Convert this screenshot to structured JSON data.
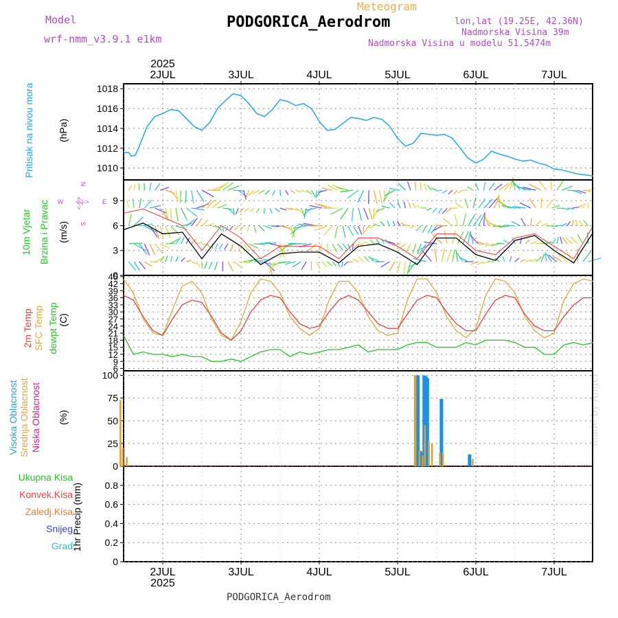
{
  "header": {
    "model_label": "Model",
    "model_name": "wrf-nmm_v3.9.1 e1km",
    "title": "Meteogram",
    "station": "PODGORICA_Aerodrom",
    "lonlat": "lon,lat (19.25E, 42.36N)",
    "elevation": "Nadmorska Visina 39m",
    "model_elevation": "Nadmorska Visina u modelu 51.5474m"
  },
  "footer_station": "PODGORICA_Aerodrom",
  "watermark": "made by Angel",
  "year_label": "2025",
  "days": [
    "2JUL",
    "3JUL",
    "4JUL",
    "5JUL",
    "6JUL",
    "7JUL"
  ],
  "compass": {
    "n": "N",
    "s": "S",
    "e": "E",
    "w": "W",
    "arrow_h": "<-|->",
    "arrow_v": "<-|->"
  },
  "colors": {
    "pressure": "#22a8e8",
    "temp2m": "#e84040",
    "sfc_temp": "#e0a840",
    "dewpoint": "#22c822",
    "high_cloud": "#1890e8",
    "mid_cloud": "#e0a030",
    "low_cloud": "#e0208a",
    "wind_speed": "#000000",
    "gust": "#ff3333",
    "total_precip": "#22c822",
    "conv_precip": "#e84040",
    "frozen_precip": "#f08030",
    "snow": "#4040d8",
    "hail": "#22c8c8",
    "compass": "#b04cc8"
  },
  "panel_labels": {
    "pressure": {
      "name": "Pritisak na nivou mora",
      "unit": "(hPa)"
    },
    "wind": {
      "name1": "10m Vjetar",
      "name2": "Brzina i Pravac",
      "unit": "(m/s)"
    },
    "temp": {
      "t2m": "2m Temp",
      "sfc": "SFC Temp",
      "dew": "dewpt Temp",
      "unit": "(C)"
    },
    "cloud": {
      "high": "Visoka Oblacnost",
      "mid": "Srednja Oblacnost",
      "low": "Niska Oblacnost",
      "unit": "(%)"
    },
    "precip": {
      "total": "Ukupna Kisa",
      "conv": "Konvek.Kisa",
      "frozen": "Zaledj.Kisa",
      "snow": "Snijeg",
      "hail": "Grad",
      "unit": "1hr Precip (mm)"
    }
  },
  "chart_data": [
    {
      "type": "line",
      "title": "",
      "ylabel": "Pritisak na nivou mora (hPa)",
      "ylim": [
        1008.8,
        1018.5
      ],
      "yticks": [
        1010,
        1012,
        1014,
        1016,
        1018
      ],
      "x": [
        0.0,
        0.06,
        0.1,
        0.15,
        0.2,
        0.3,
        0.4,
        0.5,
        0.6,
        0.7,
        0.8,
        0.9,
        1.0,
        1.1,
        1.2,
        1.3,
        1.4,
        1.5,
        1.6,
        1.7,
        1.8,
        1.9,
        2.0,
        2.1,
        2.2,
        2.3,
        2.4,
        2.5,
        2.6,
        2.7,
        2.8,
        2.9,
        3.0,
        3.1,
        3.2,
        3.3,
        3.4,
        3.5,
        3.6,
        3.7,
        3.8,
        3.9,
        4.0,
        4.1,
        4.2,
        4.3,
        4.4,
        4.5,
        4.6,
        4.7,
        4.8,
        4.9,
        5.0,
        5.1,
        5.2,
        5.3,
        5.4,
        5.5,
        5.6,
        5.7,
        5.8,
        5.9,
        6.0
      ],
      "series": [
        {
          "name": "Pritisak na nivou mora",
          "values": [
            1011.5,
            1011.6,
            1011.2,
            1011.3,
            1012.2,
            1014.2,
            1015.2,
            1015.5,
            1015.9,
            1015.8,
            1015.0,
            1014.2,
            1013.8,
            1014.6,
            1016.0,
            1016.8,
            1017.5,
            1017.3,
            1016.5,
            1015.5,
            1015.2,
            1015.9,
            1016.9,
            1016.7,
            1016.3,
            1016.5,
            1016.0,
            1014.7,
            1013.8,
            1013.9,
            1014.5,
            1015.1,
            1015.0,
            1014.8,
            1015.1,
            1014.9,
            1014.2,
            1013.0,
            1012.2,
            1012.5,
            1013.5,
            1013.4,
            1013.3,
            1013.4,
            1013.0,
            1012.0,
            1011.0,
            1010.5,
            1010.9,
            1011.7,
            1011.4,
            1011.2,
            1010.9,
            1010.7,
            1010.8,
            1010.5,
            1010.3,
            1009.9,
            1009.8,
            1009.6,
            1009.4,
            1009.3,
            1009.2
          ]
        }
      ]
    },
    {
      "type": "line",
      "title": "",
      "ylabel": "10m Vjetar Brzina i Pravac (m/s)",
      "ylim": [
        0,
        11.5
      ],
      "yticks": [
        0,
        3,
        6,
        9
      ],
      "x": [
        0.0,
        0.25,
        0.5,
        0.75,
        1.0,
        1.25,
        1.5,
        1.75,
        2.0,
        2.25,
        2.5,
        2.75,
        3.0,
        3.25,
        3.5,
        3.75,
        4.0,
        4.25,
        4.5,
        4.75,
        5.0,
        5.25,
        5.5,
        5.75,
        6.0
      ],
      "series": [
        {
          "name": "Brzina",
          "values": [
            5.5,
            6.3,
            5.0,
            5.2,
            2.0,
            5.0,
            3.5,
            1.3,
            2.6,
            2.8,
            2.8,
            1.5,
            3.5,
            3.8,
            2.8,
            1.3,
            4.5,
            4.5,
            2.5,
            1.8,
            4.2,
            4.8,
            3.0,
            1.5,
            5.2
          ]
        },
        {
          "name": "Udar",
          "values": [
            7.5,
            8.0,
            7.0,
            6.0,
            3.0,
            6.0,
            4.5,
            2.0,
            3.5,
            3.5,
            3.5,
            2.0,
            4.5,
            4.5,
            3.5,
            2.0,
            5.0,
            5.0,
            3.0,
            2.5,
            4.5,
            5.0,
            3.5,
            2.0,
            6.0
          ]
        }
      ]
    },
    {
      "type": "line",
      "title": "",
      "ylabel": "Temp (C)",
      "ylim": [
        5,
        45.5
      ],
      "yticks": [
        6,
        9,
        12,
        15,
        18,
        21,
        24,
        27,
        30,
        33,
        36,
        39,
        42,
        45
      ],
      "x": [
        0.0,
        0.125,
        0.25,
        0.375,
        0.5,
        0.625,
        0.75,
        0.875,
        1.0,
        1.125,
        1.25,
        1.375,
        1.5,
        1.625,
        1.75,
        1.875,
        2.0,
        2.125,
        2.25,
        2.375,
        2.5,
        2.625,
        2.75,
        2.875,
        3.0,
        3.125,
        3.25,
        3.375,
        3.5,
        3.625,
        3.75,
        3.875,
        4.0,
        4.125,
        4.25,
        4.375,
        4.5,
        4.625,
        4.75,
        4.875,
        5.0,
        5.125,
        5.25,
        5.375,
        5.5,
        5.625,
        5.75,
        5.875,
        6.0
      ],
      "series": [
        {
          "name": "2m Temp",
          "values": [
            37,
            35,
            28,
            22,
            20,
            27,
            33,
            35,
            34,
            28,
            21,
            18,
            22,
            30,
            35,
            37,
            36,
            30,
            25,
            23,
            24,
            30,
            35,
            37,
            35,
            30,
            25,
            23,
            23,
            29,
            35,
            37,
            36,
            30,
            25,
            22,
            22,
            29,
            35,
            37,
            36,
            29,
            24,
            22,
            22,
            28,
            33,
            36,
            36
          ]
        },
        {
          "name": "SFC Temp",
          "values": [
            44,
            38,
            27,
            21,
            20,
            31,
            41,
            43,
            38,
            27,
            20,
            18,
            26,
            38,
            44,
            43,
            38,
            28,
            23,
            20,
            23,
            35,
            43,
            43,
            38,
            28,
            22,
            20,
            21,
            35,
            44,
            44,
            38,
            28,
            22,
            19,
            23,
            37,
            44,
            43,
            38,
            28,
            22,
            19,
            21,
            35,
            42,
            44,
            43
          ]
        },
        {
          "name": "dewpt Temp",
          "values": [
            20,
            12,
            13,
            12,
            12,
            11,
            12,
            11,
            11,
            9,
            9,
            10,
            9,
            11,
            13,
            14,
            14,
            11,
            13,
            12,
            13,
            14,
            14,
            15,
            16,
            13,
            14,
            14,
            14,
            16,
            17,
            17,
            15,
            15,
            15,
            17,
            16,
            18,
            18,
            18,
            17,
            15,
            15,
            12,
            12,
            16,
            17,
            16,
            17
          ]
        }
      ]
    },
    {
      "type": "bar",
      "title": "",
      "ylabel": "Oblacnost (%)",
      "ylim": [
        0,
        105
      ],
      "yticks": [
        0,
        25,
        50,
        75,
        100
      ],
      "series": [
        {
          "name": "Visoka Oblacnost",
          "x": [
            3.76,
            3.79,
            3.82,
            3.84,
            3.86,
            3.88,
            4.06,
            4.42
          ],
          "values": [
            100,
            17,
            15,
            100,
            99,
            97,
            74,
            13
          ]
        },
        {
          "name": "Srednja Oblacnost",
          "x": [
            -0.04,
            -0.01,
            0.04,
            3.72,
            3.73,
            3.78,
            3.82,
            3.85,
            3.9,
            3.94,
            4.04,
            4.08,
            4.46
          ],
          "values": [
            73,
            20,
            10,
            100,
            100,
            18,
            12,
            45,
            28,
            25,
            15,
            15,
            8
          ]
        },
        {
          "name": "Niska Oblacnost",
          "x": [],
          "values": []
        }
      ]
    },
    {
      "type": "bar",
      "title": "",
      "ylabel": "1hr Precip (mm)",
      "ylim": [
        0,
        1.0
      ],
      "yticks": [
        0,
        0.2,
        0.4,
        0.6,
        0.8
      ],
      "series": [
        {
          "name": "Ukupna Kisa",
          "x": [],
          "values": []
        },
        {
          "name": "Konvek.Kisa",
          "x": [],
          "values": []
        },
        {
          "name": "Zaledj.Kisa",
          "x": [],
          "values": []
        },
        {
          "name": "Snijeg",
          "x": [],
          "values": []
        },
        {
          "name": "Grad",
          "x": [],
          "values": []
        }
      ]
    }
  ]
}
